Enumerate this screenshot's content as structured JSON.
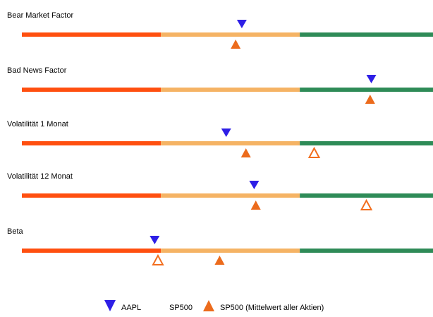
{
  "colors": {
    "low": "#ff4f0f",
    "mid": "#f5b364",
    "high": "#2e8b57",
    "stock": "#2e1fe6",
    "index": "#f26e1e",
    "index_mean": "#ec6b1c"
  },
  "chart_data": {
    "type": "scatter",
    "description_scale": [
      0,
      1
    ],
    "segments": [
      {
        "from": 0.0,
        "to": 0.338
      },
      {
        "from": 0.338,
        "to": 0.676
      },
      {
        "from": 0.676,
        "to": 1.0
      }
    ],
    "rows": [
      {
        "label": "Bear Market Factor",
        "aapl": 0.535,
        "sp500": null,
        "sp500_mean": 0.52
      },
      {
        "label": "Bad News Factor",
        "aapl": 0.85,
        "sp500": null,
        "sp500_mean": 0.847
      },
      {
        "label": "Volatilität 1 Monat",
        "aapl": 0.497,
        "sp500": 0.711,
        "sp500_mean": 0.545
      },
      {
        "label": "Volatilität 12 Monat",
        "aapl": 0.565,
        "sp500": 0.838,
        "sp500_mean": 0.569
      },
      {
        "label": "Beta",
        "aapl": 0.323,
        "sp500": 0.331,
        "sp500_mean": 0.481
      }
    ],
    "legend": {
      "aapl": "AAPL",
      "sp500": "SP500",
      "sp500_mean": "SP500 (Mittelwert aller Aktien)"
    }
  }
}
